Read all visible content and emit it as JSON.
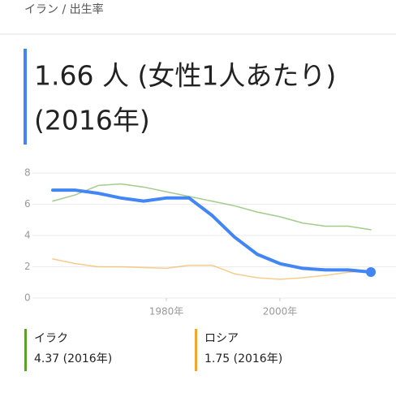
{
  "breadcrumb": "イラン / 出生率",
  "headline": [
    "1.66 人 (女性1人あたり)",
    "(2016年)"
  ],
  "chart_data": {
    "type": "line",
    "x": [
      1960,
      1964,
      1968,
      1972,
      1976,
      1980,
      1984,
      1988,
      1992,
      1996,
      2000,
      2004,
      2008,
      2012,
      2016
    ],
    "series": [
      {
        "color": "#4285f4",
        "values": [
          6.9,
          6.9,
          6.7,
          6.4,
          6.2,
          6.4,
          6.4,
          5.3,
          3.9,
          2.8,
          2.2,
          1.9,
          1.8,
          1.8,
          1.66
        ]
      },
      {
        "name": "イラク",
        "color": "#5aa02c",
        "values": [
          6.2,
          6.6,
          7.2,
          7.3,
          7.1,
          6.8,
          6.5,
          6.2,
          5.9,
          5.5,
          5.2,
          4.8,
          4.6,
          4.6,
          4.37
        ]
      },
      {
        "name": "ロシア",
        "color": "#f3a32f",
        "values": [
          2.5,
          2.2,
          2.0,
          2.0,
          1.95,
          1.9,
          2.1,
          2.1,
          1.55,
          1.3,
          1.2,
          1.3,
          1.45,
          1.65,
          1.75
        ]
      }
    ],
    "legend_values": [
      "4.37 (2016年)",
      "1.75 (2016年)"
    ],
    "xlim": [
      1956,
      2018
    ],
    "xticks": [
      {
        "value": 1980,
        "label": "1980年"
      },
      {
        "value": 2000,
        "label": "2000年"
      }
    ],
    "ylim": [
      0,
      8
    ],
    "yticks": [
      0,
      2,
      4,
      6,
      8
    ],
    "grid": true
  }
}
